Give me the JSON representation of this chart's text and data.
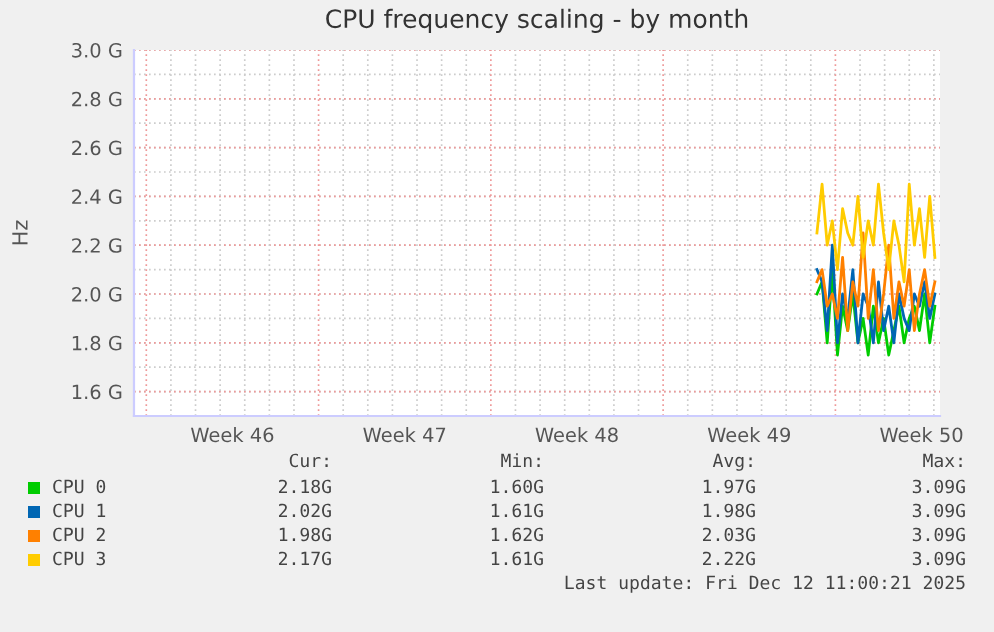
{
  "chart_data": {
    "type": "line",
    "title": "CPU frequency scaling - by month",
    "ylabel": "Hz",
    "x": [
      "2025-12-07T06:00",
      "2025-12-07T11:00",
      "2025-12-07T16:00",
      "2025-12-07T21:00",
      "2025-12-08T02:00",
      "2025-12-08T07:00",
      "2025-12-08T12:00",
      "2025-12-08T17:00",
      "2025-12-08T22:00",
      "2025-12-09T03:00",
      "2025-12-09T08:00",
      "2025-12-09T13:00",
      "2025-12-09T18:00",
      "2025-12-09T23:00",
      "2025-12-10T04:00",
      "2025-12-10T09:00",
      "2025-12-10T14:00",
      "2025-12-10T19:00",
      "2025-12-11T00:00",
      "2025-12-11T05:00",
      "2025-12-11T10:00",
      "2025-12-11T15:00",
      "2025-12-11T20:00",
      "2025-12-12T01:00"
    ],
    "series": [
      {
        "name": "CPU 0",
        "color": "#00cc00",
        "values": [
          2.0,
          2.05,
          1.8,
          2.1,
          1.75,
          1.95,
          1.85,
          2.0,
          1.8,
          1.9,
          1.75,
          1.95,
          1.8,
          1.9,
          1.75,
          1.85,
          1.95,
          1.8,
          1.9,
          1.95,
          1.85,
          2.0,
          1.8,
          1.95
        ]
      },
      {
        "name": "CPU 1",
        "color": "#0066b3",
        "values": [
          2.1,
          2.05,
          1.85,
          2.2,
          1.8,
          2.0,
          1.9,
          2.1,
          1.8,
          2.0,
          1.95,
          1.8,
          2.05,
          1.85,
          1.95,
          1.8,
          2.0,
          1.9,
          1.85,
          2.0,
          1.95,
          2.05,
          1.9,
          2.0
        ]
      },
      {
        "name": "CPU 2",
        "color": "#ff8000",
        "values": [
          2.05,
          2.1,
          1.95,
          2.0,
          1.9,
          2.15,
          1.85,
          2.05,
          1.95,
          2.25,
          1.9,
          2.1,
          1.85,
          2.0,
          2.2,
          1.9,
          2.05,
          1.95,
          2.1,
          1.85,
          2.0,
          2.1,
          1.95,
          2.05
        ]
      },
      {
        "name": "CPU 3",
        "color": "#ffcc00",
        "values": [
          2.25,
          2.45,
          2.2,
          2.3,
          2.1,
          2.35,
          2.25,
          2.2,
          2.4,
          2.15,
          2.3,
          2.2,
          2.45,
          2.25,
          2.1,
          2.3,
          2.2,
          2.05,
          2.45,
          2.2,
          2.35,
          2.15,
          2.4,
          2.15
        ]
      }
    ],
    "xlim": [
      "2025-11-09T12:00",
      "2025-12-12T06:00"
    ],
    "xticks": [
      {
        "value": "2025-11-13T12:00",
        "label": "Week 46"
      },
      {
        "value": "2025-11-20T12:00",
        "label": "Week 47"
      },
      {
        "value": "2025-11-27T12:00",
        "label": "Week 48"
      },
      {
        "value": "2025-12-04T12:00",
        "label": "Week 49"
      },
      {
        "value": "2025-12-11T12:00",
        "label": "Week 50"
      }
    ],
    "ylim": [
      1.5,
      3.0
    ],
    "yticks": [
      {
        "value": 1.6,
        "label": "1.6 G"
      },
      {
        "value": 1.8,
        "label": "1.8 G"
      },
      {
        "value": 2.0,
        "label": "2.0 G"
      },
      {
        "value": 2.2,
        "label": "2.2 G"
      },
      {
        "value": 2.4,
        "label": "2.4 G"
      },
      {
        "value": 2.6,
        "label": "2.6 G"
      },
      {
        "value": 2.8,
        "label": "2.8 G"
      },
      {
        "value": 3.0,
        "label": "3.0 G"
      }
    ],
    "grid": true,
    "legend": "bottom",
    "marker": "none",
    "line_style": "solid",
    "annotations": [
      "Cur:",
      "Min:",
      "Avg:",
      "Max:",
      "2.18G",
      "1.60G",
      "1.97G",
      "3.09G",
      "2.02G",
      "1.61G",
      "1.98G",
      "3.09G",
      "1.98G",
      "1.62G",
      "2.03G",
      "3.09G",
      "2.17G",
      "1.61G",
      "2.22G",
      "3.09G",
      "Last update: Fri Dec 12 11:00:21 2025"
    ]
  }
}
